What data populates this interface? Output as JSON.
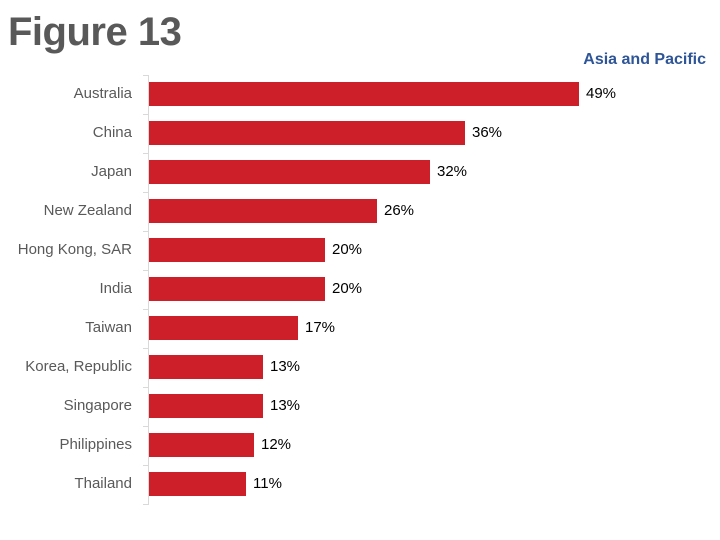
{
  "title": "Figure 13",
  "subtitle": "Asia and Pacific",
  "colors": {
    "bar": "#CC1F29",
    "title": "#595959",
    "subtitle": "#2E5597"
  },
  "chart_data": {
    "type": "bar",
    "orientation": "horizontal",
    "title": "Figure 13",
    "subtitle": "Asia and Pacific",
    "categories": [
      "Australia",
      "China",
      "Japan",
      "New Zealand",
      "Hong Kong, SAR",
      "India",
      "Taiwan",
      "Korea, Republic",
      "Singapore",
      "Philippines",
      "Thailand"
    ],
    "values": [
      49,
      36,
      32,
      26,
      20,
      20,
      17,
      13,
      13,
      12,
      11
    ],
    "labels": [
      "49%",
      "36%",
      "32%",
      "26%",
      "20%",
      "20%",
      "17%",
      "13%",
      "13%",
      "12%",
      "11%"
    ],
    "xlabel": "",
    "ylabel": "",
    "unit": "%",
    "grid": false,
    "legend": null
  }
}
